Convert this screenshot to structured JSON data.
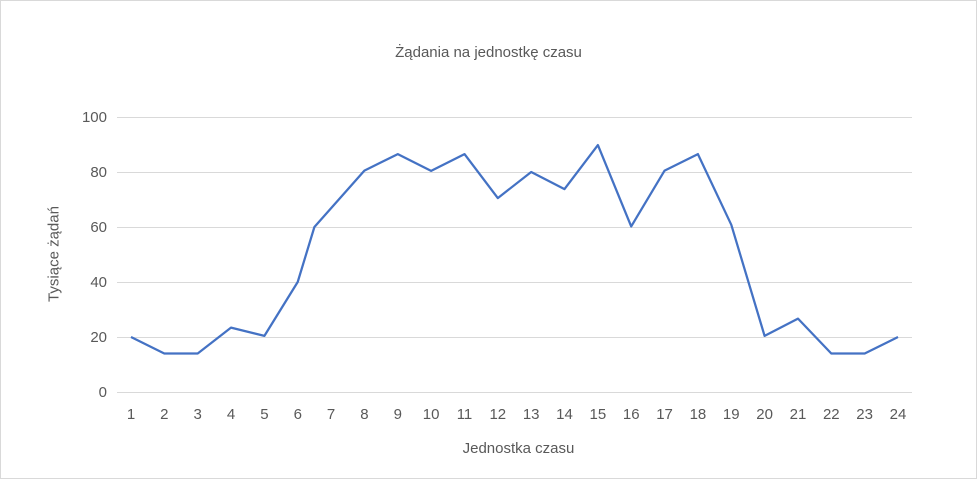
{
  "chart_data": {
    "type": "line",
    "title": "Żądania na jednostkę czasu",
    "xlabel": "Jednostka czasu",
    "ylabel": "Tysiące żądań",
    "ylim": [
      0,
      100
    ],
    "yticks": [
      0,
      20,
      40,
      60,
      80,
      100
    ],
    "xticks": [
      1,
      2,
      3,
      4,
      5,
      6,
      7,
      8,
      9,
      10,
      11,
      12,
      13,
      14,
      15,
      16,
      17,
      18,
      19,
      20,
      21,
      22,
      23,
      24
    ],
    "grid": true,
    "legend": "none",
    "series": [
      {
        "name": "Tysiące żądań",
        "color": "#4472c4",
        "points": [
          {
            "x": 1,
            "y": 20
          },
          {
            "x": 2,
            "y": 14
          },
          {
            "x": 3,
            "y": 14
          },
          {
            "x": 4,
            "y": 23.4
          },
          {
            "x": 5,
            "y": 20.4
          },
          {
            "x": 6,
            "y": 40
          },
          {
            "x": 6.5,
            "y": 60
          },
          {
            "x": 8,
            "y": 80.5
          },
          {
            "x": 9,
            "y": 86.5
          },
          {
            "x": 10,
            "y": 80.4
          },
          {
            "x": 11,
            "y": 86.5
          },
          {
            "x": 12,
            "y": 70.5
          },
          {
            "x": 13,
            "y": 80
          },
          {
            "x": 14,
            "y": 73.8
          },
          {
            "x": 15,
            "y": 89.8
          },
          {
            "x": 16,
            "y": 60.2
          },
          {
            "x": 17,
            "y": 80.5
          },
          {
            "x": 18,
            "y": 86.5
          },
          {
            "x": 19,
            "y": 60.8
          },
          {
            "x": 20,
            "y": 20.4
          },
          {
            "x": 21,
            "y": 26.7
          },
          {
            "x": 22,
            "y": 14
          },
          {
            "x": 23,
            "y": 14
          },
          {
            "x": 24,
            "y": 20
          }
        ]
      }
    ]
  },
  "colors": {
    "line": "#4472c4",
    "grid": "#d9d9d9",
    "text": "#595959",
    "border": "#d9d9d9"
  }
}
